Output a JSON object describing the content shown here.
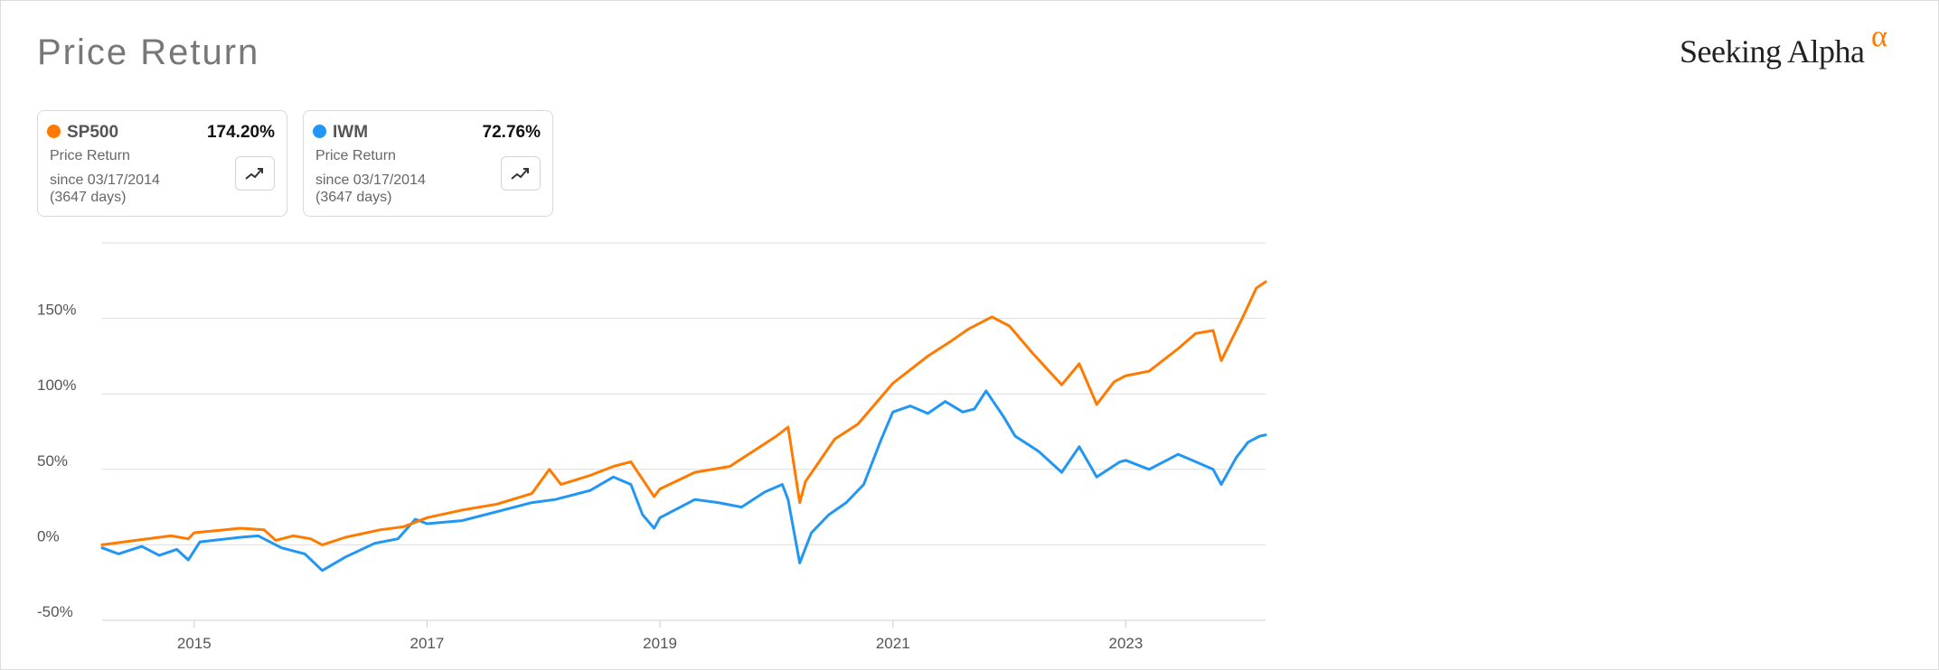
{
  "page": {
    "title": "Price Return",
    "brand": "Seeking Alpha",
    "brand_symbol": "α"
  },
  "cards": [
    {
      "ticker": "SP500",
      "value": "174.20%",
      "metric": "Price Return",
      "since": "since 03/17/2014",
      "days": "(3647 days)",
      "color": "#ff7a00",
      "icon": "trend-chart-icon"
    },
    {
      "ticker": "IWM",
      "value": "72.76%",
      "metric": "Price Return",
      "since": "since 03/17/2014",
      "days": "(3647 days)",
      "color": "#2196f3",
      "icon": "trend-chart-icon"
    }
  ],
  "chart_data": {
    "type": "line",
    "xlim": [
      2014.21,
      2024.2
    ],
    "ylim": [
      -50,
      200
    ],
    "yticks": [
      -50,
      0,
      50,
      100,
      150
    ],
    "yticklabels": [
      "-50%",
      "0%",
      "50%",
      "100%",
      "150%"
    ],
    "xticks": [
      2015,
      2017,
      2019,
      2021,
      2023
    ],
    "xticklabels": [
      "2015",
      "2017",
      "2019",
      "2021",
      "2023"
    ],
    "grid": true,
    "series": [
      {
        "name": "SP500",
        "color": "#ff7a00",
        "points": [
          [
            2014.21,
            0
          ],
          [
            2014.5,
            3
          ],
          [
            2014.8,
            6
          ],
          [
            2014.95,
            4
          ],
          [
            2015.0,
            8
          ],
          [
            2015.4,
            11
          ],
          [
            2015.6,
            10
          ],
          [
            2015.7,
            3
          ],
          [
            2015.85,
            6
          ],
          [
            2016.0,
            4
          ],
          [
            2016.1,
            0
          ],
          [
            2016.3,
            5
          ],
          [
            2016.6,
            10
          ],
          [
            2016.8,
            12
          ],
          [
            2017.0,
            18
          ],
          [
            2017.3,
            23
          ],
          [
            2017.6,
            27
          ],
          [
            2017.9,
            34
          ],
          [
            2018.05,
            50
          ],
          [
            2018.15,
            40
          ],
          [
            2018.4,
            46
          ],
          [
            2018.6,
            52
          ],
          [
            2018.75,
            55
          ],
          [
            2018.95,
            32
          ],
          [
            2019.0,
            37
          ],
          [
            2019.3,
            48
          ],
          [
            2019.6,
            52
          ],
          [
            2019.8,
            62
          ],
          [
            2020.0,
            72
          ],
          [
            2020.1,
            78
          ],
          [
            2020.2,
            28
          ],
          [
            2020.25,
            42
          ],
          [
            2020.5,
            70
          ],
          [
            2020.7,
            80
          ],
          [
            2020.9,
            98
          ],
          [
            2021.0,
            107
          ],
          [
            2021.3,
            125
          ],
          [
            2021.5,
            135
          ],
          [
            2021.65,
            143
          ],
          [
            2021.85,
            151
          ],
          [
            2022.0,
            145
          ],
          [
            2022.2,
            127
          ],
          [
            2022.45,
            106
          ],
          [
            2022.6,
            120
          ],
          [
            2022.75,
            93
          ],
          [
            2022.9,
            108
          ],
          [
            2023.0,
            112
          ],
          [
            2023.2,
            115
          ],
          [
            2023.45,
            130
          ],
          [
            2023.6,
            140
          ],
          [
            2023.75,
            142
          ],
          [
            2023.82,
            122
          ],
          [
            2024.0,
            150
          ],
          [
            2024.12,
            170
          ],
          [
            2024.2,
            174.2
          ]
        ]
      },
      {
        "name": "IWM",
        "color": "#2196f3",
        "points": [
          [
            2014.21,
            -2
          ],
          [
            2014.35,
            -6
          ],
          [
            2014.55,
            -1
          ],
          [
            2014.7,
            -7
          ],
          [
            2014.85,
            -3
          ],
          [
            2014.95,
            -10
          ],
          [
            2015.05,
            2
          ],
          [
            2015.4,
            5
          ],
          [
            2015.55,
            6
          ],
          [
            2015.75,
            -2
          ],
          [
            2015.95,
            -6
          ],
          [
            2016.1,
            -17
          ],
          [
            2016.3,
            -8
          ],
          [
            2016.55,
            1
          ],
          [
            2016.75,
            4
          ],
          [
            2016.9,
            17
          ],
          [
            2017.0,
            14
          ],
          [
            2017.3,
            16
          ],
          [
            2017.5,
            20
          ],
          [
            2017.7,
            24
          ],
          [
            2017.9,
            28
          ],
          [
            2018.1,
            30
          ],
          [
            2018.4,
            36
          ],
          [
            2018.6,
            45
          ],
          [
            2018.75,
            40
          ],
          [
            2018.85,
            20
          ],
          [
            2018.95,
            11
          ],
          [
            2019.0,
            18
          ],
          [
            2019.3,
            30
          ],
          [
            2019.5,
            28
          ],
          [
            2019.7,
            25
          ],
          [
            2019.9,
            35
          ],
          [
            2020.05,
            40
          ],
          [
            2020.1,
            30
          ],
          [
            2020.2,
            -12
          ],
          [
            2020.3,
            8
          ],
          [
            2020.45,
            20
          ],
          [
            2020.6,
            28
          ],
          [
            2020.75,
            40
          ],
          [
            2020.9,
            70
          ],
          [
            2021.0,
            88
          ],
          [
            2021.15,
            92
          ],
          [
            2021.3,
            87
          ],
          [
            2021.45,
            95
          ],
          [
            2021.6,
            88
          ],
          [
            2021.7,
            90
          ],
          [
            2021.8,
            102
          ],
          [
            2021.95,
            85
          ],
          [
            2022.05,
            72
          ],
          [
            2022.25,
            62
          ],
          [
            2022.45,
            48
          ],
          [
            2022.6,
            65
          ],
          [
            2022.75,
            45
          ],
          [
            2022.95,
            55
          ],
          [
            2023.0,
            56
          ],
          [
            2023.2,
            50
          ],
          [
            2023.45,
            60
          ],
          [
            2023.6,
            55
          ],
          [
            2023.75,
            50
          ],
          [
            2023.82,
            40
          ],
          [
            2023.95,
            58
          ],
          [
            2024.05,
            68
          ],
          [
            2024.15,
            72
          ],
          [
            2024.2,
            72.76
          ]
        ]
      }
    ]
  }
}
